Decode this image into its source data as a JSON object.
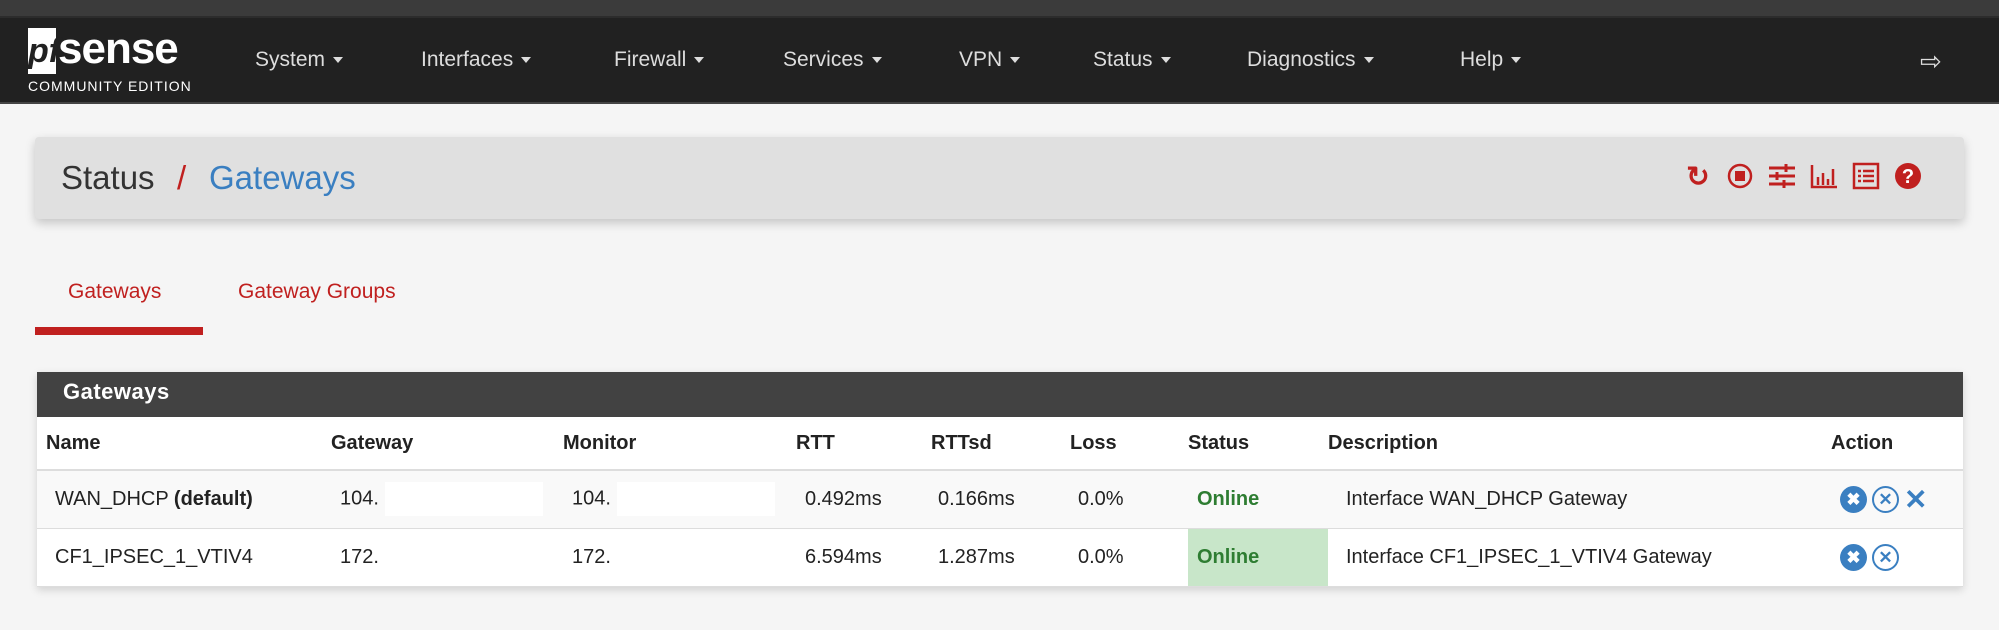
{
  "brand": {
    "logo_pf": "pf",
    "logo_sense": "sense",
    "edition": "COMMUNITY EDITION"
  },
  "nav": [
    "System",
    "Interfaces",
    "Firewall",
    "Services",
    "VPN",
    "Status",
    "Diagnostics",
    "Help"
  ],
  "breadcrumb": {
    "section": "Status",
    "separator": "/",
    "page": "Gateways"
  },
  "toolbar_icons": [
    "reload-icon",
    "stop-circle-icon",
    "sliders-icon",
    "bar-chart-icon",
    "list-icon",
    "help-icon"
  ],
  "tabs": [
    {
      "label": "Gateways",
      "active": true
    },
    {
      "label": "Gateway Groups",
      "active": false
    }
  ],
  "panel": {
    "title": "Gateways",
    "columns": [
      "Name",
      "Gateway",
      "Monitor",
      "RTT",
      "RTTsd",
      "Loss",
      "Status",
      "Description",
      "Action"
    ],
    "rows": [
      {
        "name": "WAN_DHCP",
        "name_suffix": "(default)",
        "gateway": "104.",
        "monitor": "104.",
        "rtt": "0.492ms",
        "rttsd": "0.166ms",
        "loss": "0.0%",
        "status": "Online",
        "description": "Interface WAN_DHCP Gateway",
        "actions": [
          "mark-down-icon",
          "disable-icon",
          "remove-icon"
        ]
      },
      {
        "name": "CF1_IPSEC_1_VTIV4",
        "name_suffix": "",
        "gateway": "172.",
        "monitor": "172.",
        "rtt": "6.594ms",
        "rttsd": "1.287ms",
        "loss": "0.0%",
        "status": "Online",
        "description": "Interface CF1_IPSEC_1_VTIV4 Gateway",
        "actions": [
          "mark-down-icon",
          "disable-icon"
        ]
      }
    ]
  },
  "colors": {
    "navbar": "#212121",
    "accent_red": "#c0201f",
    "link_blue": "#3a7fc1",
    "online_bg": "#c8e6c9",
    "online_text": "#2e7d32",
    "panel_header": "#424242"
  }
}
